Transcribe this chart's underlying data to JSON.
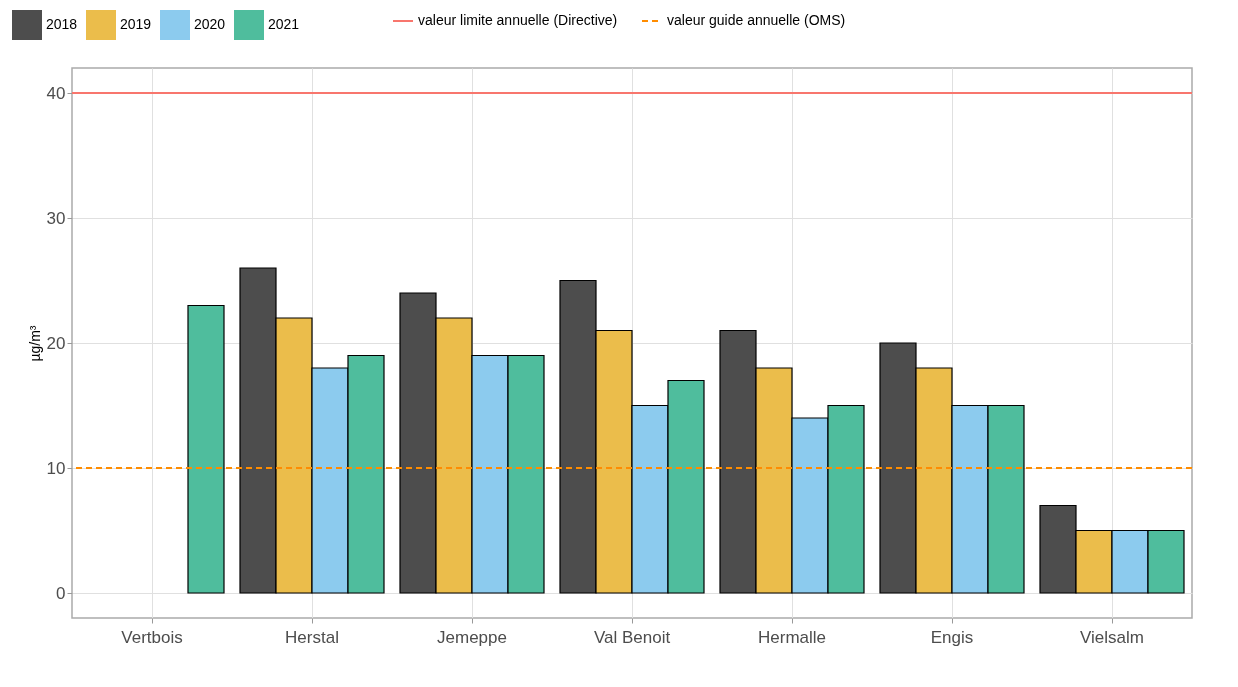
{
  "chart_data": {
    "type": "bar",
    "ylabel": "µg/m³",
    "categories": [
      "Vertbois",
      "Herstal",
      "Jemeppe",
      "Val Benoit",
      "Hermalle",
      "Engis",
      "Vielsalm"
    ],
    "series": [
      {
        "name": "2018",
        "color": "#4d4d4d",
        "values": [
          null,
          26,
          24,
          25,
          21,
          20,
          7
        ]
      },
      {
        "name": "2019",
        "color": "#ebbd4b",
        "values": [
          null,
          22,
          22,
          21,
          18,
          18,
          5
        ]
      },
      {
        "name": "2020",
        "color": "#8ccbee",
        "values": [
          null,
          18,
          19,
          15,
          14,
          15,
          5
        ]
      },
      {
        "name": "2021",
        "color": "#4fbd9d",
        "values": [
          23,
          19,
          19,
          17,
          15,
          15,
          5
        ]
      }
    ],
    "ylim": [
      -2,
      42
    ],
    "yticks": [
      0,
      10,
      20,
      30,
      40
    ],
    "grid": true,
    "legend": "top left",
    "ref_lines": [
      {
        "axis": "y",
        "value": 40,
        "label": "valeur limite annuelle (Directive)",
        "color": "#f8766d",
        "line_style": "solid"
      },
      {
        "axis": "y",
        "value": 10,
        "label": "valeur guide annuelle (OMS)",
        "color": "#ff8c00",
        "line_style": "dashed"
      }
    ]
  }
}
